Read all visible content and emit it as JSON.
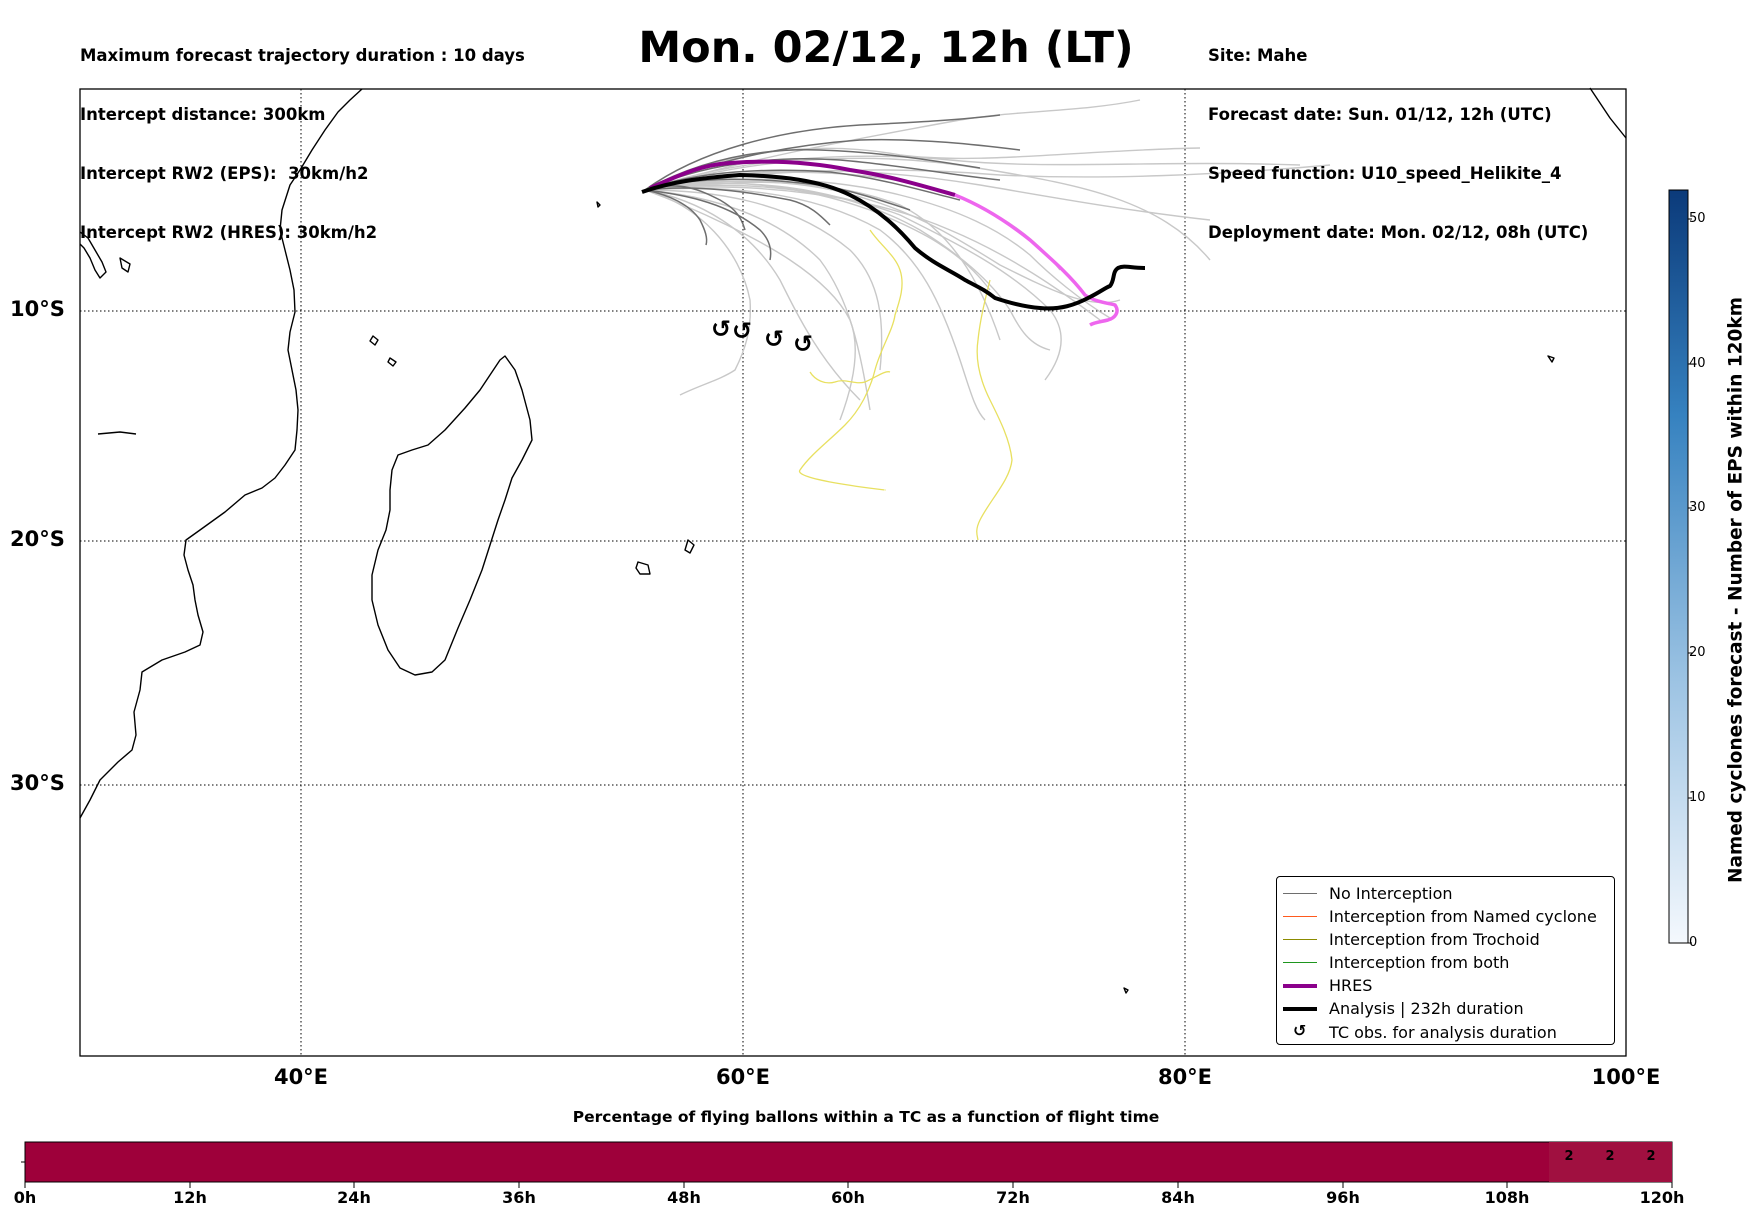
{
  "header": {
    "left": [
      "Maximum forecast trajectory duration : 10 days",
      "Intercept distance: 300km",
      "Intercept RW2 (EPS):  30km/h2",
      "Intercept RW2 (HRES): 30km/h2"
    ],
    "title": "Mon. 02/12, 12h (LT)",
    "right": [
      "Site: Mahe",
      "Forecast date: Sun. 01/12, 12h (UTC)",
      "Speed function: U10_speed_Helikite_4",
      "Deployment date: Mon. 02/12, 08h (UTC)"
    ]
  },
  "map": {
    "lat_labels": [
      "10°S",
      "20°S",
      "30°S"
    ],
    "lon_labels": [
      "40°E",
      "60°E",
      "80°E",
      "100°E"
    ],
    "colors": {
      "no_interception": "#6e6e6e",
      "ensemble_light": "#c8c8c8",
      "hres": "#8b008b",
      "hres_late": "#ee66ee",
      "analysis": "#000000",
      "trochoid_track": "#e8e060"
    },
    "tc_obs_count": 5
  },
  "legend": {
    "items": [
      {
        "label": "No Interception",
        "color": "#6e6e6e",
        "style": "thin"
      },
      {
        "label": "Interception from Named cyclone",
        "color": "#ff5a1e",
        "style": "thin"
      },
      {
        "label": "Interception from Trochoid",
        "color": "#8b8b00",
        "style": "thin"
      },
      {
        "label": "Interception from both",
        "color": "#1e961e",
        "style": "thin"
      },
      {
        "label": "HRES",
        "color": "#8b008b",
        "style": "thick"
      },
      {
        "label": "Analysis | 232h duration",
        "color": "#000000",
        "style": "thick"
      },
      {
        "label": "TC obs. for analysis duration",
        "color": "#000000",
        "style": "marker",
        "icon": "↺"
      }
    ]
  },
  "colorbar": {
    "label": "Named cyclones forecast - Number of EPS within 120km",
    "ticks": [
      "0",
      "10",
      "20",
      "30",
      "40",
      "50"
    ],
    "range": [
      0,
      52
    ],
    "color_low": "#f4f8fd",
    "color_high": "#0b3a7a"
  },
  "timebar": {
    "title": "Percentage of flying ballons within a TC as a function of flight time",
    "ticks": [
      "0h",
      "12h",
      "24h",
      "36h",
      "48h",
      "60h",
      "72h",
      "84h",
      "96h",
      "108h",
      "120h"
    ],
    "values": [
      "2",
      "2",
      "2"
    ],
    "fill_color": "#9e003a",
    "highlight_color": "#a01040"
  }
}
